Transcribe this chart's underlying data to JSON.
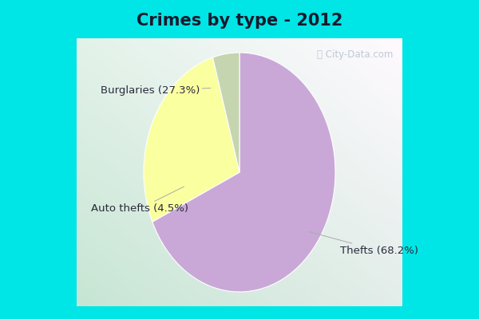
{
  "title": "Crimes by type - 2012",
  "slices": [
    {
      "label": "Thefts (68.2%)",
      "value": 68.2,
      "color": "#C9A8D8"
    },
    {
      "label": "Burglaries (27.3%)",
      "value": 27.3,
      "color": "#FAFFA0"
    },
    {
      "label": "Auto thefts (4.5%)",
      "value": 4.5,
      "color": "#C5D5B0"
    }
  ],
  "bg_outer": "#00E5E5",
  "title_fontsize": 15,
  "label_fontsize": 9.5,
  "watermark": "City-Data.com",
  "startangle": 90,
  "title_color": "#1a1a2e",
  "label_color": "#2a2a3a",
  "border_thickness": 0.07
}
